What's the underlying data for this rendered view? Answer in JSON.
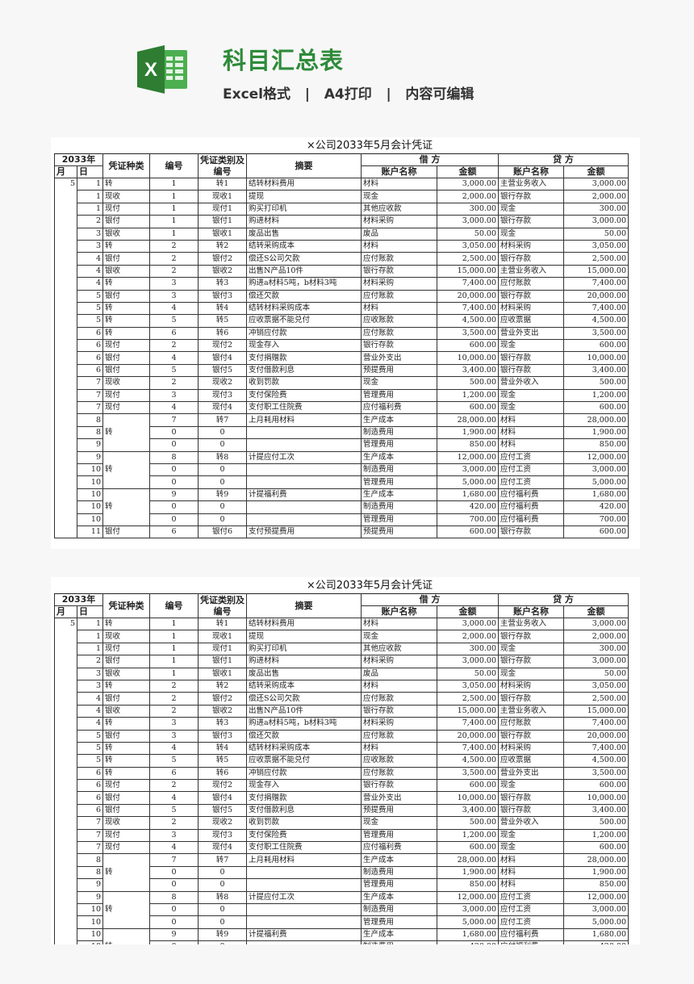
{
  "header": {
    "title": "科目汇总表",
    "subtitle": "Excel格式   |   A4打印   |   内容可编辑",
    "logo_text": "X",
    "accent_color": "#2e8b3a"
  },
  "sheet": {
    "title": "×公司2033年5月会计凭证",
    "columns": {
      "year": "2033年",
      "month": "月",
      "day": "日",
      "voucher_type": "凭证种类",
      "number": "编号",
      "category_number": "凭证类别及编号",
      "summary": "摘要",
      "debit": "借 方",
      "credit": "贷 方",
      "account": "账户名称",
      "amount": "金额"
    },
    "month": "5",
    "rows": [
      {
        "day": "1",
        "type": "转",
        "no": "1",
        "cat": "转1",
        "summary": "结转材料费用",
        "debit_acct": "材料",
        "debit_amt": "3,000.00",
        "credit_acct": "主营业务收入",
        "credit_amt": "3,000.00"
      },
      {
        "day": "1",
        "type": "现收",
        "no": "1",
        "cat": "现收1",
        "summary": "提现",
        "debit_acct": "现金",
        "debit_amt": "2,000.00",
        "credit_acct": "银行存款",
        "credit_amt": "2,000.00"
      },
      {
        "day": "1",
        "type": "现付",
        "no": "1",
        "cat": "现付1",
        "summary": "购买打印机",
        "debit_acct": "其他应收款",
        "debit_amt": "300.00",
        "credit_acct": "现金",
        "credit_amt": "300.00"
      },
      {
        "day": "2",
        "type": "银付",
        "no": "1",
        "cat": "银付1",
        "summary": "购进材料",
        "debit_acct": "材料采购",
        "debit_amt": "3,000.00",
        "credit_acct": "银行存款",
        "credit_amt": "3,000.00"
      },
      {
        "day": "3",
        "type": "银收",
        "no": "1",
        "cat": "银收1",
        "summary": "废品出售",
        "debit_acct": "废品",
        "debit_amt": "50.00",
        "credit_acct": "现金",
        "credit_amt": "50.00"
      },
      {
        "day": "3",
        "type": "转",
        "no": "2",
        "cat": "转2",
        "summary": "结转采购成本",
        "debit_acct": "材料",
        "debit_amt": "3,050.00",
        "credit_acct": "材料采购",
        "credit_amt": "3,050.00"
      },
      {
        "day": "4",
        "type": "银付",
        "no": "2",
        "cat": "银付2",
        "summary": "偿还S公司欠款",
        "debit_acct": "应付账款",
        "debit_amt": "2,500.00",
        "credit_acct": "银行存款",
        "credit_amt": "2,500.00"
      },
      {
        "day": "4",
        "type": "银收",
        "no": "2",
        "cat": "银收2",
        "summary": "出售N产品10件",
        "debit_acct": "银行存款",
        "debit_amt": "15,000.00",
        "credit_acct": "主营业务收入",
        "credit_amt": "15,000.00"
      },
      {
        "day": "4",
        "type": "转",
        "no": "3",
        "cat": "转3",
        "summary": "购进a材料5吨，b材料3吨",
        "debit_acct": "材料采购",
        "debit_amt": "7,400.00",
        "credit_acct": "应付账款",
        "credit_amt": "7,400.00"
      },
      {
        "day": "5",
        "type": "银付",
        "no": "3",
        "cat": "银付3",
        "summary": "偿还欠款",
        "debit_acct": "应付账款",
        "debit_amt": "20,000.00",
        "credit_acct": "银行存款",
        "credit_amt": "20,000.00"
      },
      {
        "day": "5",
        "type": "转",
        "no": "4",
        "cat": "转4",
        "summary": "结转材料采购成本",
        "debit_acct": "材料",
        "debit_amt": "7,400.00",
        "credit_acct": "材料采购",
        "credit_amt": "7,400.00"
      },
      {
        "day": "5",
        "type": "转",
        "no": "5",
        "cat": "转5",
        "summary": "应收票据不能兑付",
        "debit_acct": "应收账款",
        "debit_amt": "4,500.00",
        "credit_acct": "应收票据",
        "credit_amt": "4,500.00"
      },
      {
        "day": "6",
        "type": "转",
        "no": "6",
        "cat": "转6",
        "summary": "冲销应付款",
        "debit_acct": "应付账款",
        "debit_amt": "3,500.00",
        "credit_acct": "营业外支出",
        "credit_amt": "3,500.00"
      },
      {
        "day": "6",
        "type": "现付",
        "no": "2",
        "cat": "现付2",
        "summary": "现金存入",
        "debit_acct": "银行存款",
        "debit_amt": "600.00",
        "credit_acct": "现金",
        "credit_amt": "600.00"
      },
      {
        "day": "6",
        "type": "银付",
        "no": "4",
        "cat": "银付4",
        "summary": "支付捐赠款",
        "debit_acct": "营业外支出",
        "debit_amt": "10,000.00",
        "credit_acct": "银行存款",
        "credit_amt": "10,000.00"
      },
      {
        "day": "6",
        "type": "银付",
        "no": "5",
        "cat": "银付5",
        "summary": "支付借款利息",
        "debit_acct": "预提费用",
        "debit_amt": "3,400.00",
        "credit_acct": "银行存款",
        "credit_amt": "3,400.00"
      },
      {
        "day": "7",
        "type": "现收",
        "no": "2",
        "cat": "现收2",
        "summary": "收到罚款",
        "debit_acct": "现金",
        "debit_amt": "500.00",
        "credit_acct": "营业外收入",
        "credit_amt": "500.00"
      },
      {
        "day": "7",
        "type": "现付",
        "no": "3",
        "cat": "现付3",
        "summary": "支付保险费",
        "debit_acct": "管理费用",
        "debit_amt": "1,200.00",
        "credit_acct": "现金",
        "credit_amt": "1,200.00"
      },
      {
        "day": "7",
        "type": "现付",
        "no": "4",
        "cat": "现付4",
        "summary": "支付职工住院费",
        "debit_acct": "应付福利费",
        "debit_amt": "600.00",
        "credit_acct": "现金",
        "credit_amt": "600.00"
      },
      {
        "day": "8",
        "type": "转",
        "span": 3,
        "no": "7",
        "cat": "转7",
        "summary": "上月耗用材料",
        "debit_acct": "生产成本",
        "debit_amt": "28,000.00",
        "credit_acct": "材料",
        "credit_amt": "28,000.00"
      },
      {
        "day": "8",
        "no": "0",
        "cat": "0",
        "summary": "",
        "debit_acct": "制造费用",
        "debit_amt": "1,900.00",
        "credit_acct": "材料",
        "credit_amt": "1,900.00"
      },
      {
        "day": "9",
        "no": "0",
        "cat": "0",
        "summary": "",
        "debit_acct": "管理费用",
        "debit_amt": "850.00",
        "credit_acct": "材料",
        "credit_amt": "850.00"
      },
      {
        "day": "9",
        "type": "转",
        "span": 3,
        "no": "8",
        "cat": "转8",
        "summary": "计提应付工次",
        "debit_acct": "生产成本",
        "debit_amt": "12,000.00",
        "credit_acct": "应付工资",
        "credit_amt": "12,000.00"
      },
      {
        "day": "10",
        "no": "0",
        "cat": "0",
        "summary": "",
        "debit_acct": "制造费用",
        "debit_amt": "3,000.00",
        "credit_acct": "应付工资",
        "credit_amt": "3,000.00"
      },
      {
        "day": "10",
        "no": "0",
        "cat": "0",
        "summary": "",
        "debit_acct": "管理费用",
        "debit_amt": "5,000.00",
        "credit_acct": "应付工资",
        "credit_amt": "5,000.00"
      },
      {
        "day": "10",
        "type": "转",
        "span": 3,
        "no": "9",
        "cat": "转9",
        "summary": "计提福利费",
        "debit_acct": "生产成本",
        "debit_amt": "1,680.00",
        "credit_acct": "应付福利费",
        "credit_amt": "1,680.00"
      },
      {
        "day": "10",
        "no": "0",
        "cat": "0",
        "summary": "",
        "debit_acct": "制造费用",
        "debit_amt": "420.00",
        "credit_acct": "应付福利费",
        "credit_amt": "420.00"
      },
      {
        "day": "10",
        "no": "0",
        "cat": "0",
        "summary": "",
        "debit_acct": "管理费用",
        "debit_amt": "700.00",
        "credit_acct": "应付福利费",
        "credit_amt": "700.00"
      },
      {
        "day": "11",
        "type": "银付",
        "no": "6",
        "cat": "银付6",
        "summary": "支付预提费用",
        "debit_acct": "预提费用",
        "debit_amt": "600.00",
        "credit_acct": "银行存款",
        "credit_amt": "600.00"
      }
    ]
  }
}
